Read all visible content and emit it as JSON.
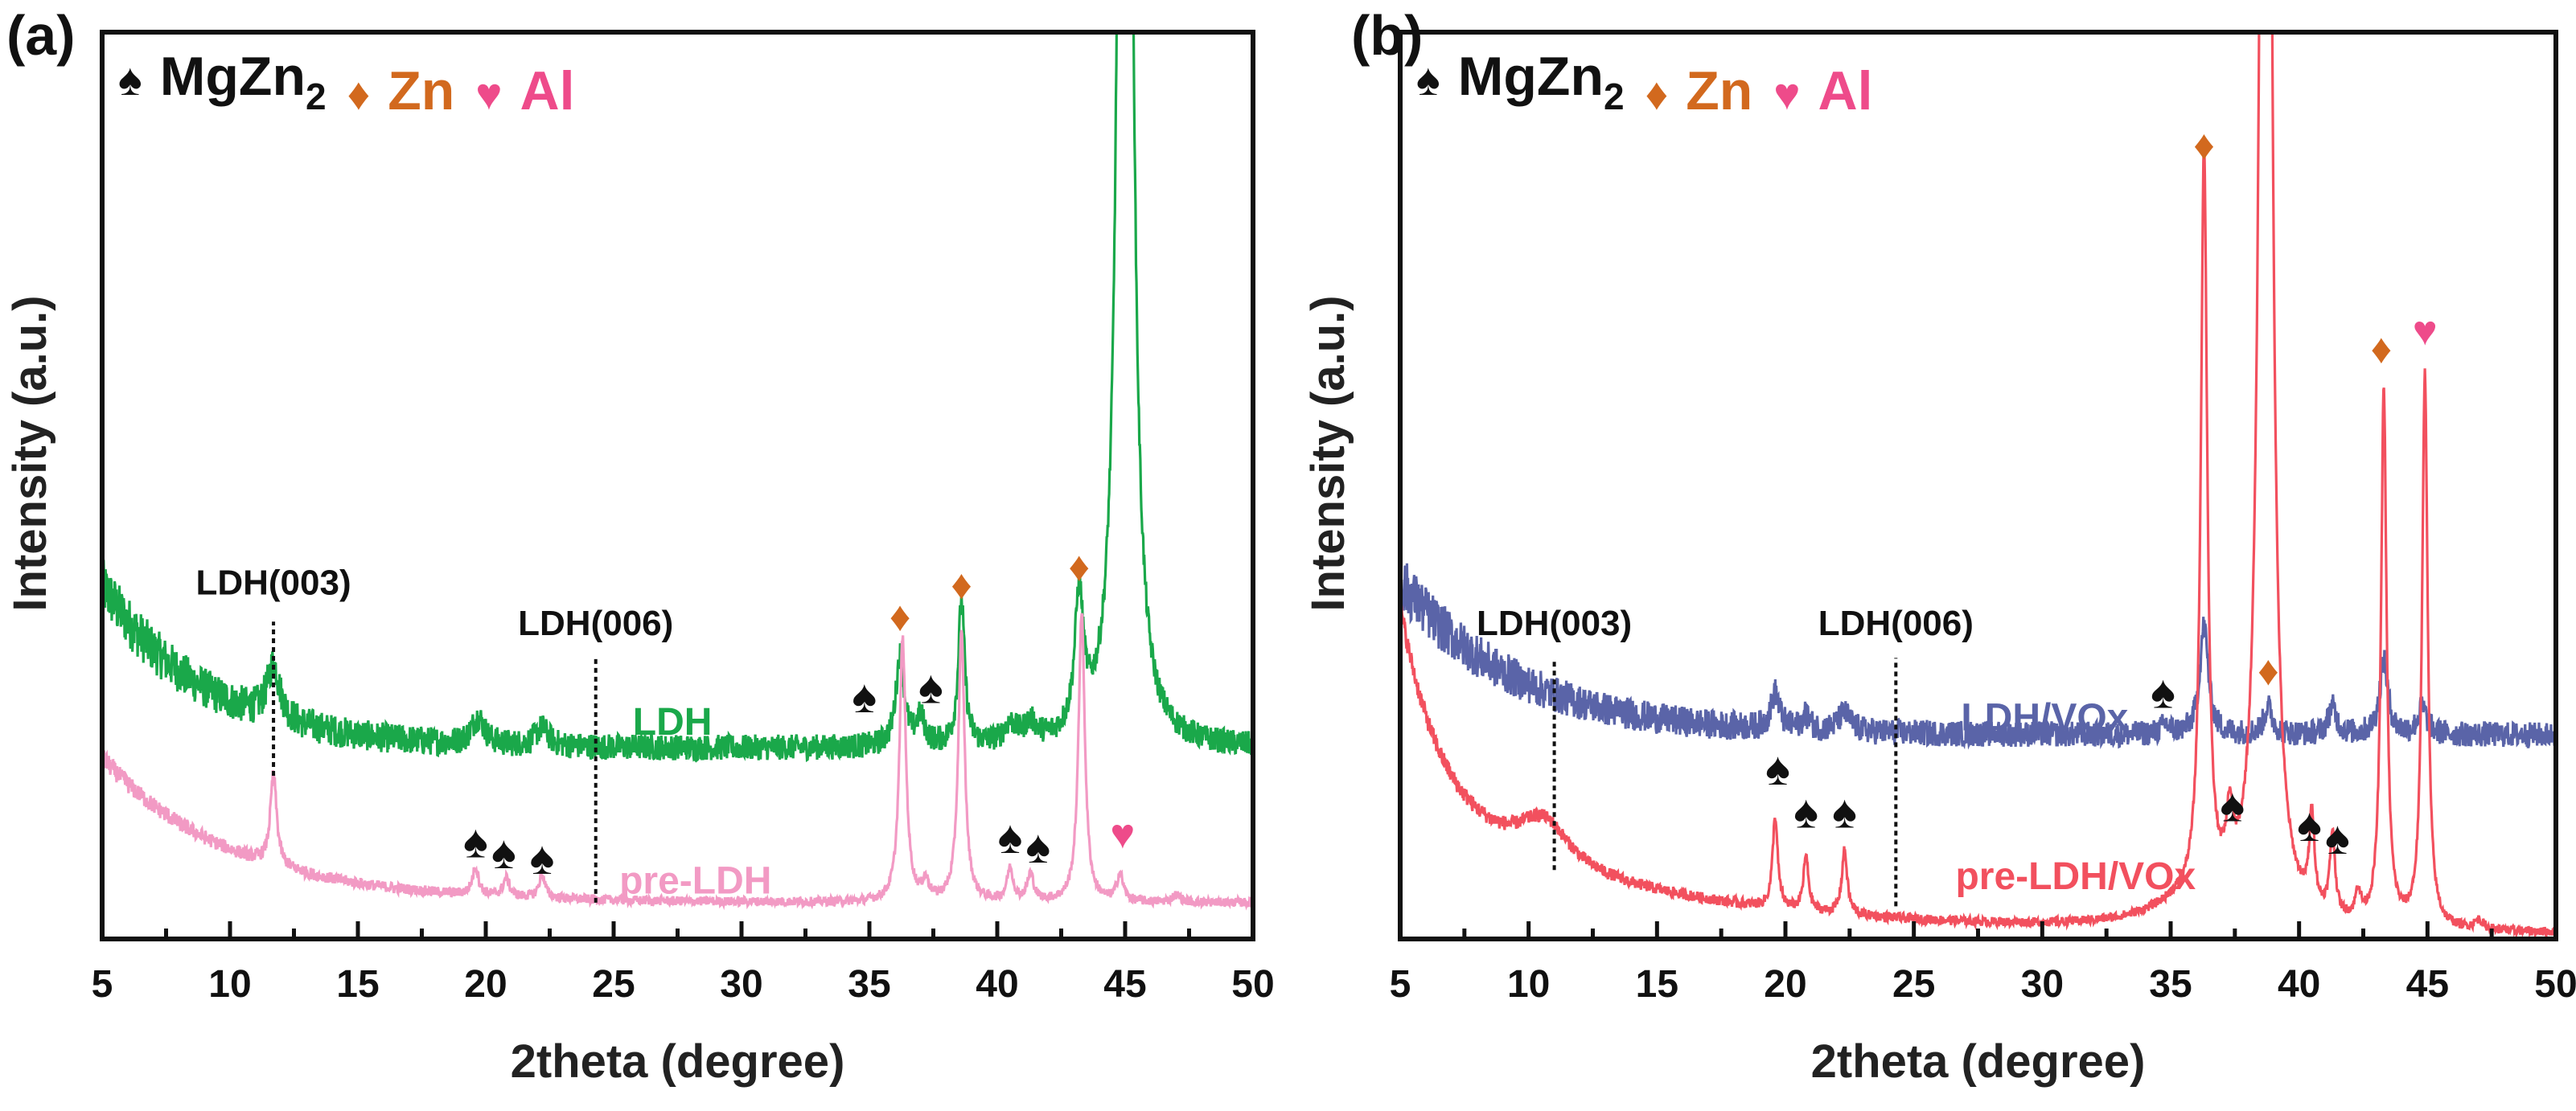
{
  "chart_data": [
    {
      "type": "line",
      "panel_label": "(a)",
      "xlabel": "2theta (degree)",
      "ylabel": "Intensity (a.u.)",
      "xlim": [
        5,
        50
      ],
      "ylim": [
        0,
        100
      ],
      "xticks": [
        5,
        10,
        15,
        20,
        25,
        30,
        35,
        40,
        45,
        50
      ],
      "legend": [
        {
          "symbol": "♠",
          "text": "MgZn",
          "sub": "2",
          "color": "#111111"
        },
        {
          "symbol": "♦",
          "text": "Zn",
          "color": "#d2691e"
        },
        {
          "symbol": "♥",
          "text": "Al",
          "color": "#ee4b8a"
        }
      ],
      "series": [
        {
          "name": "LDH",
          "color": "#1aa84a",
          "label_pos": [
            27.3,
            22.5
          ],
          "baseline": {
            "floor": 21,
            "terms": [
              [
                18,
                4
              ]
            ]
          },
          "noise": 1.4,
          "peaks": [
            [
              11.7,
              6,
              0.3
            ],
            [
              19.7,
              3,
              0.3
            ],
            [
              22.2,
              2,
              0.3
            ],
            [
              36.2,
              10,
              0.2
            ],
            [
              37,
              3,
              0.2
            ],
            [
              38.6,
              16,
              0.15
            ],
            [
              40.5,
              2,
              0.3
            ],
            [
              41.3,
              2,
              0.3
            ],
            [
              43.2,
              15,
              0.2
            ],
            [
              45,
              300,
              0.2
            ]
          ]
        },
        {
          "name": "pre-LDH",
          "color": "#f29ac4",
          "label_pos": [
            28.2,
            5
          ],
          "baseline": {
            "floor": 4,
            "terms": [
              [
                16,
                5
              ]
            ]
          },
          "noise": 0.5,
          "peaks": [
            [
              11.7,
              10,
              0.15
            ],
            [
              19.6,
              3,
              0.15
            ],
            [
              20.8,
              2,
              0.15
            ],
            [
              22.2,
              2.5,
              0.15
            ],
            [
              36.3,
              29,
              0.15
            ],
            [
              37.2,
              2,
              0.15
            ],
            [
              38.6,
              29.5,
              0.15
            ],
            [
              40.5,
              3.5,
              0.15
            ],
            [
              41.3,
              3,
              0.15
            ],
            [
              43.3,
              32,
              0.15
            ],
            [
              44.8,
              3,
              0.15
            ],
            [
              47,
              0.8,
              0.2
            ]
          ]
        }
      ],
      "annotations": [
        {
          "text": "LDH(003)",
          "x": 11.7,
          "line": [
            18,
            35
          ],
          "text_y": 38
        },
        {
          "text": "LDH(006)",
          "x": 24.3,
          "line": [
            4,
            31
          ],
          "text_y": 33.5
        }
      ],
      "markers": [
        {
          "type": "spade",
          "x": 34.8,
          "y": 25
        },
        {
          "type": "spade",
          "x": 37.4,
          "y": 26
        },
        {
          "type": "spade",
          "x": 19.6,
          "y": 9
        },
        {
          "type": "spade",
          "x": 20.7,
          "y": 7.8
        },
        {
          "type": "spade",
          "x": 22.2,
          "y": 7.2
        },
        {
          "type": "spade",
          "x": 40.5,
          "y": 9.5
        },
        {
          "type": "spade",
          "x": 41.3,
          "y": 8.4
        },
        {
          "type": "diamond",
          "x": 36.2,
          "y": 34
        },
        {
          "type": "diamond",
          "x": 38.6,
          "y": 37.5
        },
        {
          "type": "diamond",
          "x": 43.2,
          "y": 39.5
        },
        {
          "type": "heart",
          "x": 44.9,
          "y": 10
        }
      ]
    },
    {
      "type": "line",
      "panel_label": "(b)",
      "xlabel": "2theta (degree)",
      "ylabel": "Intensity (a.u.)",
      "xlim": [
        5,
        50
      ],
      "ylim": [
        0,
        100
      ],
      "xticks": [
        5,
        10,
        15,
        20,
        25,
        30,
        35,
        40,
        45,
        50
      ],
      "legend": [
        {
          "symbol": "♠",
          "text": "MgZn",
          "sub": "2",
          "color": "#111111"
        },
        {
          "symbol": "♦",
          "text": "Zn",
          "color": "#d2691e"
        },
        {
          "symbol": "♥",
          "text": "Al",
          "color": "#ee4b8a"
        }
      ],
      "series": [
        {
          "name": "LDH/VOx",
          "color": "#5a64a8",
          "label_pos": [
            32.6,
            23
          ],
          "baseline": {
            "floor": 22.5,
            "terms": [
              [
                17,
                4.5
              ]
            ]
          },
          "noise": 1.4,
          "peaks": [
            [
              19.6,
              4,
              0.2
            ],
            [
              20.8,
              1.5,
              0.2
            ],
            [
              22.3,
              2,
              0.3
            ],
            [
              34.8,
              1,
              0.2
            ],
            [
              36.3,
              12,
              0.2
            ],
            [
              38.8,
              3,
              0.2
            ],
            [
              41.3,
              3,
              0.2
            ],
            [
              43.3,
              8,
              0.2
            ],
            [
              44.8,
              3,
              0.2
            ]
          ]
        },
        {
          "name": "pre-LDH/VOx",
          "color": "#f2505e",
          "label_pos": [
            31.3,
            5.5
          ],
          "baseline": {
            "floor": 0.5,
            "terms": [
              [
                22,
                1.5
              ],
              [
                14,
                9
              ]
            ]
          },
          "noise": 0.5,
          "peaks": [
            [
              10.6,
              5,
              1.2
            ],
            [
              36,
              3,
              2
            ],
            [
              19.6,
              10,
              0.12
            ],
            [
              20.8,
              6,
              0.12
            ],
            [
              22.3,
              7,
              0.13
            ],
            [
              36.3,
              82,
              0.15
            ],
            [
              37.3,
              7,
              0.15
            ],
            [
              38.7,
              300,
              0.18
            ],
            [
              40.5,
              10,
              0.12
            ],
            [
              41.3,
              9,
              0.12
            ],
            [
              42.3,
              3,
              0.12
            ],
            [
              43.3,
              59,
              0.13
            ],
            [
              44.9,
              61,
              0.13
            ],
            [
              47,
              1,
              0.2
            ]
          ]
        }
      ],
      "annotations": [
        {
          "text": "LDH(003)",
          "x": 11.0,
          "line": [
            7.6,
            31
          ],
          "text_y": 33.5
        },
        {
          "text": "LDH(006)",
          "x": 24.3,
          "line": [
            3.6,
            31
          ],
          "text_y": 33.5
        }
      ],
      "markers": [
        {
          "type": "spade",
          "x": 34.7,
          "y": 25.5
        },
        {
          "type": "spade",
          "x": 19.7,
          "y": 17
        },
        {
          "type": "spade",
          "x": 20.8,
          "y": 12.3
        },
        {
          "type": "spade",
          "x": 22.3,
          "y": 12.3
        },
        {
          "type": "spade",
          "x": 37.4,
          "y": 13
        },
        {
          "type": "spade",
          "x": 40.4,
          "y": 10.8
        },
        {
          "type": "spade",
          "x": 41.3,
          "y": 9.4
        },
        {
          "type": "diamond",
          "x": 36.3,
          "y": 86
        },
        {
          "type": "diamond",
          "x": 38.8,
          "y": 28
        },
        {
          "type": "diamond",
          "x": 43.2,
          "y": 63.5
        },
        {
          "type": "heart",
          "x": 44.9,
          "y": 65.5
        }
      ]
    }
  ]
}
